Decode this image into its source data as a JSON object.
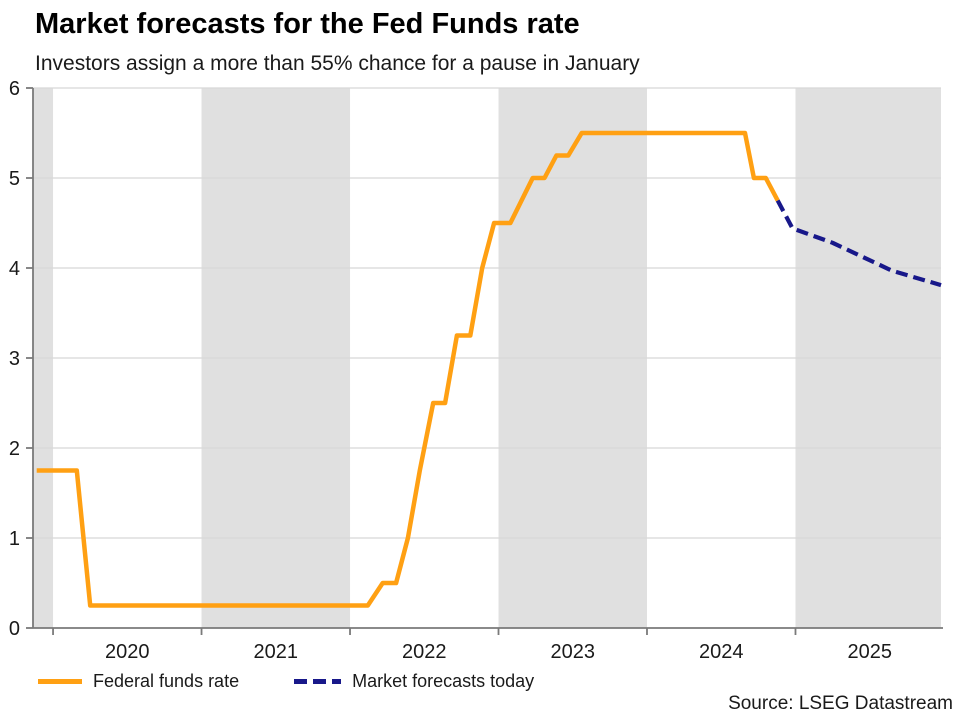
{
  "title": "Market forecasts for the Fed Funds rate",
  "subtitle": "Investors assign a more than 55% chance for a pause in January",
  "source": "Source: LSEG Datastream",
  "legend": [
    {
      "label": "Federal funds rate",
      "color": "#FFA013",
      "style": "solid"
    },
    {
      "label": "Market forecasts today",
      "color": "#18188A",
      "style": "dashed"
    }
  ],
  "colors": {
    "accent_orange": "#FFA013",
    "forecast_navy": "#18188A",
    "band_gray": "#E0E0E0",
    "gridline": "#D8D8D8",
    "axis": "#7a7a7a",
    "tick_text": "#1a1a1a"
  },
  "chart_data": {
    "type": "line",
    "title": "Market forecasts for the Fed Funds rate",
    "subtitle": "Investors assign a more than 55% chance for a pause in January",
    "xlabel": "",
    "ylabel": "",
    "x_axis": {
      "range": [
        2019.865,
        2025.98
      ],
      "tick_positions": [
        2020,
        2021,
        2022,
        2023,
        2024,
        2025
      ],
      "tick_labels": [
        "2020",
        "2021",
        "2022",
        "2023",
        "2024",
        "2025"
      ]
    },
    "y_axis": {
      "range": [
        0,
        6
      ],
      "tick_positions": [
        0,
        1,
        2,
        3,
        4,
        5,
        6
      ],
      "tick_labels": [
        "0",
        "1",
        "2",
        "3",
        "4",
        "5",
        "6"
      ],
      "gridlines": [
        1,
        2,
        3,
        4,
        5,
        6
      ]
    },
    "shaded_bands": [
      [
        2019.865,
        2020.0
      ],
      [
        2021.0,
        2022.0
      ],
      [
        2023.0,
        2024.0
      ],
      [
        2025.0,
        2025.98
      ]
    ],
    "grid": true,
    "legend_position": "bottom",
    "series": [
      {
        "name": "Federal funds rate",
        "color": "#FFA013",
        "style": "solid",
        "points": [
          [
            2019.89,
            1.75
          ],
          [
            2020.16,
            1.75
          ],
          [
            2020.25,
            0.25
          ],
          [
            2022.12,
            0.25
          ],
          [
            2022.22,
            0.5
          ],
          [
            2022.31,
            0.5
          ],
          [
            2022.39,
            1.0
          ],
          [
            2022.47,
            1.75
          ],
          [
            2022.56,
            2.5
          ],
          [
            2022.64,
            2.5
          ],
          [
            2022.72,
            3.25
          ],
          [
            2022.81,
            3.25
          ],
          [
            2022.89,
            4.0
          ],
          [
            2022.97,
            4.5
          ],
          [
            2023.08,
            4.5
          ],
          [
            2023.23,
            5.0
          ],
          [
            2023.31,
            5.0
          ],
          [
            2023.39,
            5.25
          ],
          [
            2023.47,
            5.25
          ],
          [
            2023.56,
            5.5
          ],
          [
            2024.66,
            5.5
          ],
          [
            2024.72,
            5.0
          ],
          [
            2024.8,
            5.0
          ],
          [
            2024.88,
            4.75
          ]
        ]
      },
      {
        "name": "Market forecasts today",
        "color": "#18188A",
        "style": "dashed",
        "points": [
          [
            2024.88,
            4.75
          ],
          [
            2024.98,
            4.44
          ],
          [
            2025.25,
            4.28
          ],
          [
            2025.65,
            3.97
          ],
          [
            2025.98,
            3.81
          ]
        ]
      }
    ]
  }
}
